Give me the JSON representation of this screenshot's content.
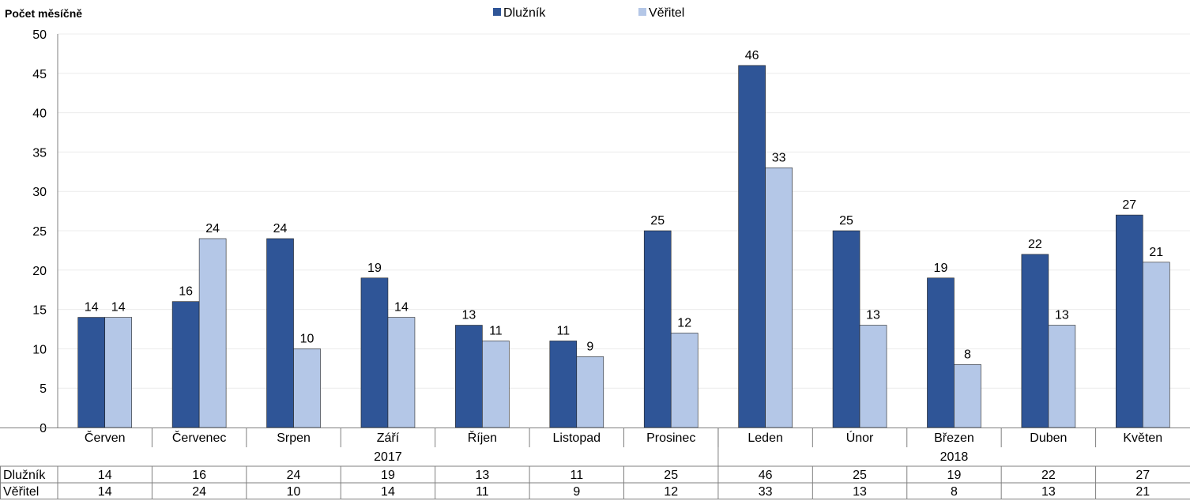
{
  "chart_data": {
    "type": "bar",
    "ylabel": "Počet měsíčně",
    "ylim": [
      0,
      50
    ],
    "ytick_step": 5,
    "grid": true,
    "legend_position": "top-center",
    "categories": [
      "Červen",
      "Červenec",
      "Srpen",
      "Září",
      "Říjen",
      "Listopad",
      "Prosinec",
      "Leden",
      "Únor",
      "Březen",
      "Duben",
      "Květen"
    ],
    "year_groups": [
      {
        "label": "2017",
        "start": 0,
        "end": 6
      },
      {
        "label": "2018",
        "start": 7,
        "end": 11
      }
    ],
    "series": [
      {
        "name": "Dlužník",
        "color": "#2f5597",
        "values": [
          14,
          16,
          24,
          19,
          13,
          11,
          25,
          46,
          25,
          19,
          22,
          27
        ]
      },
      {
        "name": "Věřitel",
        "color": "#b4c7e7",
        "values": [
          14,
          24,
          10,
          14,
          11,
          9,
          12,
          33,
          13,
          8,
          13,
          21
        ]
      }
    ],
    "show_data_labels": true,
    "data_table": true
  }
}
